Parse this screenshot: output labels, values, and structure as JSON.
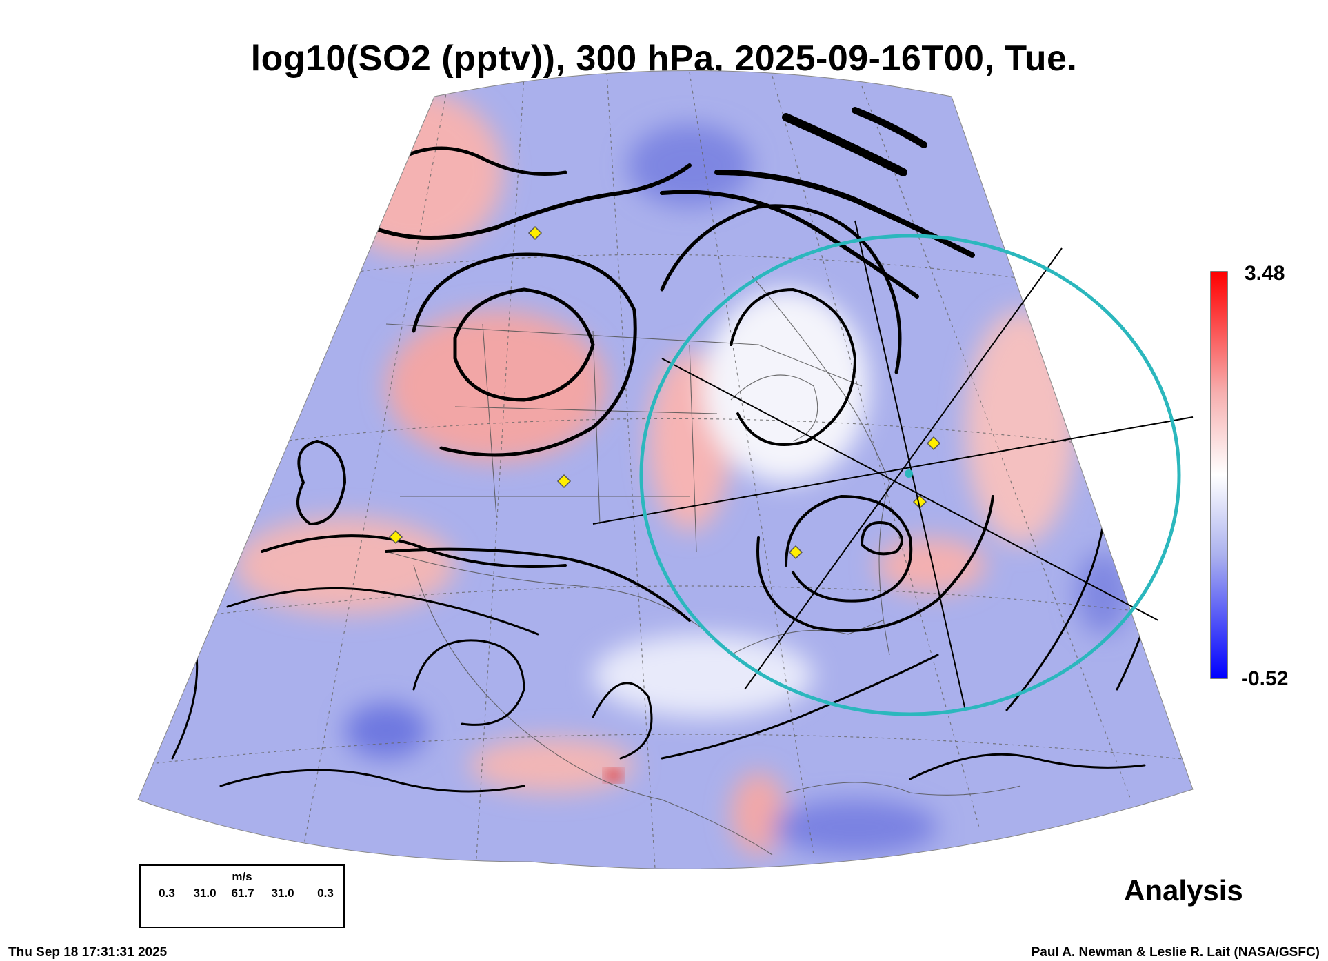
{
  "title": "log10(SO2 (pptv)), 300 hPa, 2025-09-16T00, Tue.",
  "colorbar": {
    "max_label": "3.48",
    "min_label": "-0.52",
    "colors": [
      "#ff0000",
      "#ffffff",
      "#0000ff"
    ]
  },
  "legend": {
    "unit": "m/s",
    "values": [
      "0.3",
      "31.0",
      "61.7",
      "31.0",
      "0.3"
    ]
  },
  "analysis_label": "Analysis",
  "footer": {
    "timestamp": "Thu Sep 18 17:31:31 2025",
    "credit": "Paul A. Newman & Leslie R. Lait (NASA/GSFC)"
  },
  "map": {
    "field_colors": {
      "high": "#f4a8a8",
      "mid": "#ffffff",
      "low": "#8f97ea"
    },
    "marker_color": "#ffee00",
    "circle_color": "#2bb7bd"
  }
}
